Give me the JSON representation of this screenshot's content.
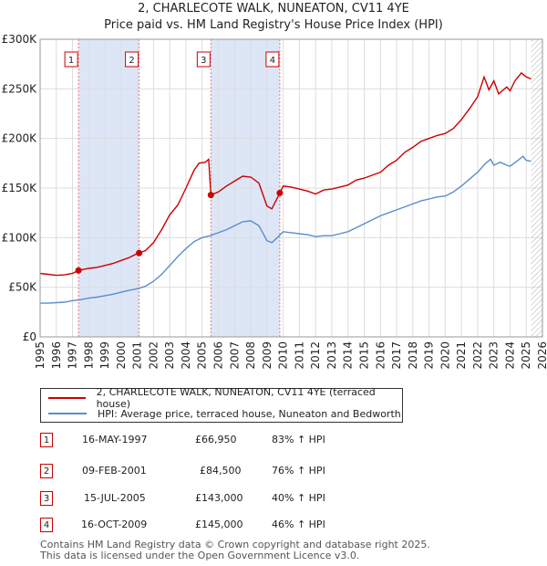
{
  "title_line1": "2, CHARLECOTE WALK, NUNEATON, CV11 4YE",
  "title_line2": "Price paid vs. HM Land Registry's House Price Index (HPI)",
  "colors": {
    "property": "#cc0000",
    "hpi": "#5b8ec9",
    "band": "#dde6f7"
  },
  "chart_data": {
    "type": "line",
    "title": "Price paid vs. HM Land Registry's House Price Index (HPI)",
    "xlim": [
      1995,
      2026
    ],
    "ylim": [
      0,
      300000
    ],
    "x_ticks": [
      "1995",
      "1996",
      "1997",
      "1998",
      "1999",
      "2000",
      "2001",
      "2002",
      "2003",
      "2004",
      "2005",
      "2006",
      "2007",
      "2008",
      "2009",
      "2010",
      "2011",
      "2012",
      "2013",
      "2014",
      "2015",
      "2016",
      "2017",
      "2018",
      "2019",
      "2020",
      "2021",
      "2022",
      "2023",
      "2024",
      "2025",
      "2026"
    ],
    "y_ticks": [
      {
        "value": 0,
        "label": "£0"
      },
      {
        "value": 50000,
        "label": "£50K"
      },
      {
        "value": 100000,
        "label": "£100K"
      },
      {
        "value": 150000,
        "label": "£150K"
      },
      {
        "value": 200000,
        "label": "£200K"
      },
      {
        "value": 250000,
        "label": "£250K"
      },
      {
        "value": 300000,
        "label": "£300K"
      }
    ],
    "bands": [
      [
        1997.37,
        2001.11
      ],
      [
        2005.54,
        2009.79
      ]
    ],
    "future_start": 2025.3,
    "series": [
      {
        "name": "2, CHARLECOTE WALK, NUNEATON, CV11 4YE (terraced house)",
        "color": "#cc0000",
        "points": [
          [
            1995,
            64000
          ],
          [
            1995.5,
            63000
          ],
          [
            1996,
            62000
          ],
          [
            1996.5,
            62500
          ],
          [
            1997,
            64000
          ],
          [
            1997.37,
            66950
          ],
          [
            1998,
            69000
          ],
          [
            1998.5,
            70000
          ],
          [
            1999,
            72000
          ],
          [
            1999.5,
            74000
          ],
          [
            2000,
            77000
          ],
          [
            2000.5,
            80000
          ],
          [
            2001,
            84000
          ],
          [
            2001.11,
            84500
          ],
          [
            2001.5,
            87000
          ],
          [
            2002,
            95000
          ],
          [
            2002.5,
            108000
          ],
          [
            2003,
            123000
          ],
          [
            2003.5,
            133000
          ],
          [
            2004,
            150000
          ],
          [
            2004.5,
            168000
          ],
          [
            2004.8,
            175000
          ],
          [
            2005.2,
            176000
          ],
          [
            2005.4,
            179000
          ],
          [
            2005.54,
            143000
          ],
          [
            2006,
            146000
          ],
          [
            2006.5,
            152000
          ],
          [
            2007,
            157000
          ],
          [
            2007.5,
            162000
          ],
          [
            2008,
            161000
          ],
          [
            2008.5,
            155000
          ],
          [
            2009,
            132000
          ],
          [
            2009.3,
            129000
          ],
          [
            2009.79,
            145000
          ],
          [
            2010,
            152000
          ],
          [
            2010.5,
            151000
          ],
          [
            2011,
            149000
          ],
          [
            2011.5,
            147000
          ],
          [
            2012,
            144000
          ],
          [
            2012.5,
            148000
          ],
          [
            2013,
            149000
          ],
          [
            2013.5,
            151000
          ],
          [
            2014,
            153000
          ],
          [
            2014.5,
            158000
          ],
          [
            2015,
            160000
          ],
          [
            2015.5,
            163000
          ],
          [
            2016,
            166000
          ],
          [
            2016.5,
            173000
          ],
          [
            2017,
            178000
          ],
          [
            2017.5,
            186000
          ],
          [
            2018,
            191000
          ],
          [
            2018.5,
            197000
          ],
          [
            2019,
            200000
          ],
          [
            2019.5,
            203000
          ],
          [
            2020,
            205000
          ],
          [
            2020.5,
            210000
          ],
          [
            2021,
            219000
          ],
          [
            2021.5,
            230000
          ],
          [
            2022,
            242000
          ],
          [
            2022.4,
            262000
          ],
          [
            2022.7,
            249000
          ],
          [
            2023,
            258000
          ],
          [
            2023.3,
            245000
          ],
          [
            2023.8,
            252000
          ],
          [
            2024,
            248000
          ],
          [
            2024.3,
            258000
          ],
          [
            2024.7,
            266000
          ],
          [
            2025,
            262000
          ],
          [
            2025.3,
            260000
          ]
        ]
      },
      {
        "name": "HPI: Average price, terraced house, Nuneaton and Bedworth",
        "color": "#5b8ec9",
        "points": [
          [
            1995,
            34000
          ],
          [
            1995.5,
            34000
          ],
          [
            1996,
            34500
          ],
          [
            1996.5,
            35000
          ],
          [
            1997,
            36500
          ],
          [
            1997.5,
            37500
          ],
          [
            1998,
            39000
          ],
          [
            1998.5,
            40000
          ],
          [
            1999,
            41500
          ],
          [
            1999.5,
            43000
          ],
          [
            2000,
            45000
          ],
          [
            2000.5,
            47000
          ],
          [
            2001,
            48500
          ],
          [
            2001.5,
            51000
          ],
          [
            2002,
            56000
          ],
          [
            2002.5,
            63000
          ],
          [
            2003,
            72000
          ],
          [
            2003.5,
            81000
          ],
          [
            2004,
            89000
          ],
          [
            2004.5,
            96000
          ],
          [
            2005,
            100000
          ],
          [
            2005.5,
            102000
          ],
          [
            2006,
            105000
          ],
          [
            2006.5,
            108000
          ],
          [
            2007,
            112000
          ],
          [
            2007.5,
            116000
          ],
          [
            2008,
            117000
          ],
          [
            2008.5,
            112000
          ],
          [
            2009,
            97000
          ],
          [
            2009.3,
            95000
          ],
          [
            2009.7,
            101000
          ],
          [
            2010,
            106000
          ],
          [
            2010.5,
            105000
          ],
          [
            2011,
            104000
          ],
          [
            2011.5,
            103000
          ],
          [
            2012,
            101000
          ],
          [
            2012.5,
            102000
          ],
          [
            2013,
            102000
          ],
          [
            2013.5,
            104000
          ],
          [
            2014,
            106000
          ],
          [
            2014.5,
            110000
          ],
          [
            2015,
            114000
          ],
          [
            2015.5,
            118000
          ],
          [
            2016,
            122000
          ],
          [
            2016.5,
            125000
          ],
          [
            2017,
            128000
          ],
          [
            2017.5,
            131000
          ],
          [
            2018,
            134000
          ],
          [
            2018.5,
            137000
          ],
          [
            2019,
            139000
          ],
          [
            2019.5,
            141000
          ],
          [
            2020,
            142000
          ],
          [
            2020.5,
            146000
          ],
          [
            2021,
            152000
          ],
          [
            2021.5,
            159000
          ],
          [
            2022,
            166000
          ],
          [
            2022.5,
            175000
          ],
          [
            2022.8,
            179000
          ],
          [
            2023,
            173000
          ],
          [
            2023.4,
            176000
          ],
          [
            2023.8,
            173000
          ],
          [
            2024,
            172000
          ],
          [
            2024.5,
            178000
          ],
          [
            2024.8,
            182000
          ],
          [
            2025,
            178000
          ],
          [
            2025.3,
            177000
          ]
        ]
      }
    ],
    "transactions_plot": [
      {
        "label": "1",
        "x": 1997.37,
        "y": 66950
      },
      {
        "label": "2",
        "x": 2001.11,
        "y": 84500
      },
      {
        "label": "3",
        "x": 2005.54,
        "y": 143000
      },
      {
        "label": "4",
        "x": 2009.79,
        "y": 145000
      }
    ]
  },
  "legend": {
    "property_label": "2, CHARLECOTE WALK, NUNEATON, CV11 4YE (terraced house)",
    "hpi_label": "HPI: Average price, terraced house, Nuneaton and Bedworth"
  },
  "transactions": [
    {
      "num": "1",
      "date": "16-MAY-1997",
      "price": "£66,950",
      "hpi": "83% ↑ HPI"
    },
    {
      "num": "2",
      "date": "09-FEB-2001",
      "price": "£84,500",
      "hpi": "76% ↑ HPI"
    },
    {
      "num": "3",
      "date": "15-JUL-2005",
      "price": "£143,000",
      "hpi": "40% ↑ HPI"
    },
    {
      "num": "4",
      "date": "16-OCT-2009",
      "price": "£145,000",
      "hpi": "46% ↑ HPI"
    }
  ],
  "footer": {
    "line1": "Contains HM Land Registry data © Crown copyright and database right 2025.",
    "line2": "This data is licensed under the Open Government Licence v3.0."
  }
}
